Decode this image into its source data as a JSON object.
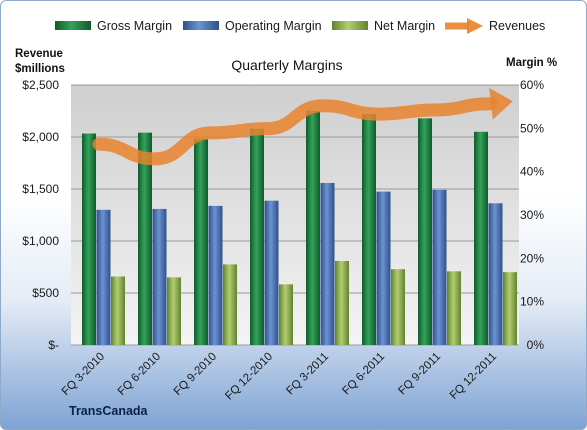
{
  "chart_data": {
    "type": "bar",
    "title": "Quarterly Margins",
    "source": "TransCanada",
    "left_axis": {
      "label_line1": "Revenue",
      "label_line2": "$millions",
      "ylim": [
        0,
        2500
      ],
      "ticks": [
        "$-",
        "$500",
        "$1,000",
        "$1,500",
        "$2,000",
        "$2,500"
      ]
    },
    "right_axis": {
      "label": "Margin %",
      "ylim": [
        0,
        60
      ],
      "ticks": [
        "0%",
        "10%",
        "20%",
        "30%",
        "40%",
        "50%",
        "60%"
      ]
    },
    "categories": [
      "FQ 3-2010",
      "FQ 6-2010",
      "FQ 9-2010",
      "FQ 12-2010",
      "FQ 3-2011",
      "FQ 6-2011",
      "FQ 9-2011",
      "FQ 12-2011"
    ],
    "series": [
      {
        "name": "Gross Margin",
        "axis": "right",
        "kind": "bar",
        "color": "#1e7a3c",
        "values": [
          48.8,
          49.0,
          47.6,
          49.9,
          54.0,
          53.3,
          52.3,
          49.2
        ]
      },
      {
        "name": "Operating Margin",
        "axis": "right",
        "kind": "bar",
        "color": "#4a74b8",
        "values": [
          31.2,
          31.4,
          32.1,
          33.3,
          37.4,
          35.4,
          35.8,
          32.7
        ]
      },
      {
        "name": "Net Margin",
        "axis": "right",
        "kind": "bar",
        "color": "#8fb050",
        "values": [
          15.8,
          15.6,
          18.6,
          14.0,
          19.4,
          17.5,
          17.0,
          16.8
        ]
      },
      {
        "name": "Revenues",
        "axis": "left",
        "kind": "line",
        "color": "#e8822e",
        "values": [
          1930,
          1790,
          2040,
          2080,
          2300,
          2220,
          2260,
          2320
        ]
      }
    ],
    "grid": true,
    "legend_position": "top"
  }
}
